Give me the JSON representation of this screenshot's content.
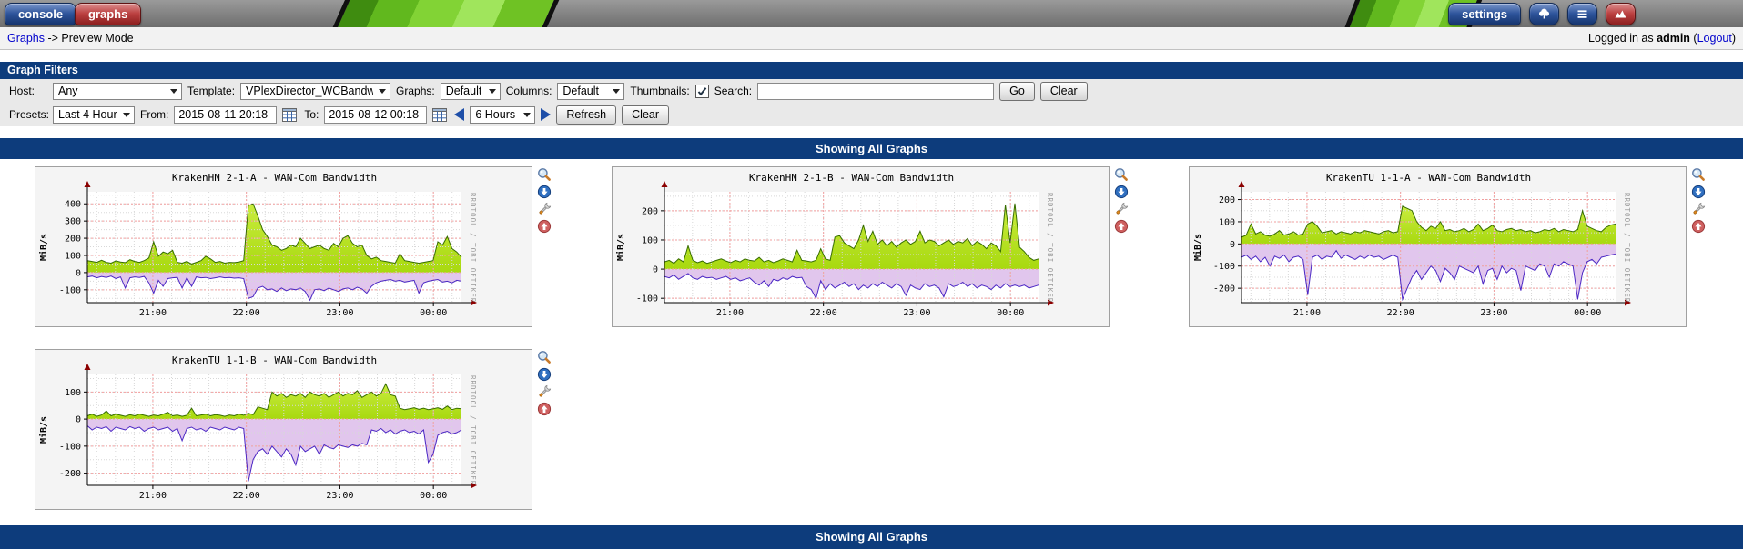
{
  "header": {
    "tabs": [
      {
        "label": "console"
      },
      {
        "label": "graphs"
      }
    ],
    "settings_label": "settings",
    "breadcrumb": {
      "link": "Graphs",
      "rest": "-> Preview Mode"
    },
    "login": {
      "prefix": "Logged in as",
      "user": "admin",
      "paren_open": "(",
      "logout": "Logout",
      "paren_close": ")"
    }
  },
  "filters": {
    "title": "Graph Filters",
    "host_label": "Host:",
    "host_value": "Any",
    "template_label": "Template:",
    "template_value": "VPlexDirector_WCBandwidth",
    "graphs_label": "Graphs:",
    "graphs_value": "Default",
    "columns_label": "Columns:",
    "columns_value": "Default",
    "thumbnails_label": "Thumbnails:",
    "thumbnails_checked": true,
    "search_label": "Search:",
    "search_value": "",
    "go_label": "Go",
    "clear_label": "Clear",
    "presets_label": "Presets:",
    "presets_value": "Last 4 Hours",
    "from_label": "From:",
    "from_value": "2015-08-11 20:18",
    "to_label": "To:",
    "to_value": "2015-08-12 00:18",
    "timespan_value": "6 Hours",
    "refresh_label": "Refresh",
    "clear2_label": "Clear"
  },
  "banner_top": "Showing All Graphs",
  "banner_bottom": "Showing All Graphs",
  "graph_actions": [
    {
      "icon": "zoom-icon"
    },
    {
      "icon": "export-down-icon"
    },
    {
      "icon": "wrench-icon"
    },
    {
      "icon": "page-top-icon"
    }
  ],
  "colors": {
    "navy": "#0d3c7c",
    "green_fill": "#a8d90f",
    "green_line": "#376d00",
    "purple_fill": "#dfc3ec",
    "purple_line": "#4b27c4",
    "grid_major": "#f29f9f",
    "grid_minor": "#d8d8d8",
    "axis_arrow": "#8b0000"
  },
  "chart_data": [
    {
      "type": "area",
      "title": "KrakenHN 2-1-A - WAN-Com Bandwidth",
      "ylabel": "MiB/s",
      "watermark": "RRDTOOL / TOBI OETIKER",
      "x_start": "20:18",
      "x_end": "00:18",
      "xticks": [
        {
          "label": "21:00",
          "f": 0.175
        },
        {
          "label": "22:00",
          "f": 0.425
        },
        {
          "label": "23:00",
          "f": 0.675
        },
        {
          "label": "00:00",
          "f": 0.925
        }
      ],
      "yticks": [
        400,
        300,
        200,
        100,
        0,
        -100
      ],
      "ylim": [
        -175,
        470
      ],
      "series": [
        {
          "name": "series_green",
          "values": [
            70,
            65,
            60,
            72,
            60,
            55,
            68,
            62,
            58,
            75,
            65,
            60,
            70,
            85,
            180,
            95,
            120,
            110,
            130,
            60,
            55,
            65,
            50,
            60,
            70,
            95,
            80,
            60,
            65,
            55,
            60,
            58,
            62,
            70,
            390,
            400,
            330,
            250,
            210,
            160,
            150,
            130,
            140,
            160,
            150,
            200,
            170,
            140,
            150,
            160,
            140,
            130,
            170,
            150,
            200,
            215,
            170,
            150,
            160,
            100,
            80,
            90,
            70,
            65,
            60,
            55,
            110,
            70,
            65,
            60,
            55,
            60,
            65,
            70,
            180,
            160,
            210,
            140,
            120,
            90
          ]
        },
        {
          "name": "series_purple",
          "values": [
            -25,
            -20,
            -30,
            -22,
            -28,
            -20,
            -35,
            -25,
            -90,
            -30,
            -25,
            -28,
            -22,
            -60,
            -120,
            -45,
            -80,
            -35,
            -30,
            -28,
            -90,
            -30,
            -80,
            -25,
            -30,
            -28,
            -35,
            -30,
            -25,
            -30,
            -28,
            -32,
            -30,
            -35,
            -150,
            -140,
            -90,
            -80,
            -100,
            -95,
            -110,
            -90,
            -105,
            -95,
            -100,
            -90,
            -110,
            -160,
            -100,
            -95,
            -105,
            -90,
            -100,
            -110,
            -95,
            -90,
            -100,
            -85,
            -95,
            -120,
            -80,
            -60,
            -50,
            -45,
            -40,
            -50,
            -45,
            -55,
            -50,
            -45,
            -120,
            -60,
            -50,
            -45,
            -40,
            -55,
            -50,
            -60,
            -45,
            -50
          ]
        }
      ]
    },
    {
      "type": "area",
      "title": "KrakenHN 2-1-B - WAN-Com Bandwidth",
      "ylabel": "MiB/s",
      "watermark": "RRDTOOL / TOBI OETIKER",
      "x_start": "20:18",
      "x_end": "00:18",
      "xticks": [
        {
          "label": "21:00",
          "f": 0.175
        },
        {
          "label": "22:00",
          "f": 0.425
        },
        {
          "label": "23:00",
          "f": 0.675
        },
        {
          "label": "00:00",
          "f": 0.925
        }
      ],
      "yticks": [
        200,
        100,
        0,
        -100
      ],
      "ylim": [
        -115,
        265
      ],
      "series": [
        {
          "name": "series_green",
          "values": [
            25,
            30,
            20,
            35,
            25,
            80,
            30,
            22,
            28,
            20,
            25,
            30,
            35,
            28,
            22,
            30,
            25,
            35,
            30,
            28,
            40,
            25,
            30,
            22,
            28,
            35,
            30,
            25,
            65,
            30,
            28,
            25,
            30,
            70,
            35,
            30,
            110,
            115,
            90,
            80,
            70,
            100,
            150,
            95,
            130,
            85,
            100,
            80,
            95,
            75,
            90,
            100,
            85,
            95,
            130,
            90,
            100,
            95,
            80,
            90,
            100,
            85,
            95,
            90,
            105,
            80,
            95,
            85,
            70,
            90,
            80,
            60,
            220,
            90,
            225,
            75,
            60,
            40,
            30,
            35
          ]
        },
        {
          "name": "series_purple",
          "values": [
            -25,
            -30,
            -20,
            -35,
            -25,
            -15,
            -30,
            -35,
            -25,
            -30,
            -28,
            -35,
            -30,
            -25,
            -35,
            -30,
            -40,
            -35,
            -30,
            -45,
            -55,
            -40,
            -60,
            -35,
            -40,
            -30,
            -35,
            -25,
            -30,
            -28,
            -60,
            -70,
            -100,
            -40,
            -70,
            -50,
            -65,
            -55,
            -45,
            -60,
            -50,
            -70,
            -55,
            -65,
            -50,
            -60,
            -45,
            -55,
            -65,
            -50,
            -60,
            -90,
            -55,
            -65,
            -70,
            -50,
            -60,
            -55,
            -65,
            -95,
            -50,
            -60,
            -55,
            -45,
            -60,
            -50,
            -65,
            -55,
            -60,
            -70,
            -55,
            -65,
            -50,
            -60,
            -55,
            -60,
            -55,
            -65,
            -60,
            -55
          ]
        }
      ]
    },
    {
      "type": "area",
      "title": "KrakenTU 1-1-A - WAN-Com Bandwidth",
      "ylabel": "MiB/s",
      "watermark": "RRDTOOL / TOBI OETIKER",
      "x_start": "20:18",
      "x_end": "00:18",
      "xticks": [
        {
          "label": "21:00",
          "f": 0.175
        },
        {
          "label": "22:00",
          "f": 0.425
        },
        {
          "label": "23:00",
          "f": 0.675
        },
        {
          "label": "00:00",
          "f": 0.925
        }
      ],
      "yticks": [
        200,
        100,
        0,
        -100,
        -200
      ],
      "ylim": [
        -265,
        235
      ],
      "series": [
        {
          "name": "series_green",
          "values": [
            30,
            40,
            90,
            45,
            55,
            40,
            35,
            45,
            60,
            40,
            45,
            55,
            40,
            45,
            90,
            100,
            80,
            50,
            55,
            60,
            45,
            55,
            50,
            45,
            55,
            50,
            60,
            55,
            50,
            45,
            55,
            60,
            50,
            55,
            170,
            160,
            150,
            100,
            75,
            60,
            80,
            70,
            100,
            60,
            65,
            55,
            60,
            70,
            55,
            65,
            90,
            60,
            70,
            85,
            60,
            55,
            65,
            70,
            60,
            65,
            55,
            60,
            50,
            55,
            65,
            60,
            70,
            55,
            65,
            60,
            55,
            65,
            150,
            80,
            70,
            60,
            55,
            75,
            85,
            90
          ]
        },
        {
          "name": "series_purple",
          "values": [
            -60,
            -50,
            -70,
            -55,
            -80,
            -60,
            -100,
            -55,
            -65,
            -50,
            -80,
            -60,
            -55,
            -70,
            -230,
            -60,
            -50,
            -70,
            -55,
            -60,
            -30,
            -65,
            -50,
            -60,
            -70,
            -55,
            -65,
            -50,
            -60,
            -55,
            -70,
            -60,
            -50,
            -60,
            -250,
            -200,
            -150,
            -120,
            -160,
            -130,
            -100,
            -120,
            -170,
            -110,
            -130,
            -160,
            -100,
            -110,
            -120,
            -130,
            -100,
            -180,
            -120,
            -110,
            -160,
            -100,
            -130,
            -110,
            -120,
            -210,
            -100,
            -110,
            -120,
            -90,
            -100,
            -150,
            -90,
            -100,
            -80,
            -90,
            -100,
            -250,
            -130,
            -80,
            -70,
            -90,
            -60,
            -55,
            -50,
            -45
          ]
        }
      ]
    },
    {
      "type": "area",
      "title": "KrakenTU 1-1-B - WAN-Com Bandwidth",
      "ylabel": "MiB/s",
      "watermark": "RRDTOOL / TOBI OETIKER",
      "x_start": "20:18",
      "x_end": "00:18",
      "xticks": [
        {
          "label": "21:00",
          "f": 0.175
        },
        {
          "label": "22:00",
          "f": 0.425
        },
        {
          "label": "23:00",
          "f": 0.675
        },
        {
          "label": "00:00",
          "f": 0.925
        }
      ],
      "yticks": [
        100,
        0,
        -100,
        -200
      ],
      "ylim": [
        -245,
        165
      ],
      "series": [
        {
          "name": "series_green",
          "values": [
            12,
            18,
            10,
            15,
            30,
            12,
            18,
            14,
            10,
            16,
            12,
            18,
            14,
            10,
            15,
            12,
            18,
            25,
            12,
            15,
            10,
            14,
            40,
            12,
            15,
            18,
            12,
            16,
            14,
            10,
            15,
            12,
            18,
            14,
            22,
            16,
            45,
            40,
            35,
            100,
            85,
            95,
            80,
            90,
            85,
            95,
            80,
            100,
            90,
            85,
            95,
            80,
            90,
            100,
            85,
            95,
            90,
            105,
            80,
            90,
            100,
            85,
            95,
            130,
            90,
            85,
            40,
            35,
            38,
            42,
            36,
            40,
            35,
            38,
            42,
            36,
            48,
            35,
            40,
            38
          ]
        },
        {
          "name": "series_purple",
          "values": [
            -25,
            -40,
            -30,
            -35,
            -28,
            -45,
            -30,
            -35,
            -40,
            -28,
            -35,
            -30,
            -45,
            -35,
            -30,
            -40,
            -35,
            -30,
            -45,
            -35,
            -80,
            -35,
            -30,
            -40,
            -35,
            -45,
            -30,
            -35,
            -40,
            -30,
            -35,
            -40,
            -30,
            -35,
            -230,
            -150,
            -120,
            -110,
            -130,
            -100,
            -120,
            -140,
            -110,
            -130,
            -170,
            -100,
            -120,
            -110,
            -100,
            -130,
            -95,
            -105,
            -110,
            -95,
            -100,
            -105,
            -95,
            -100,
            -90,
            -95,
            -40,
            -45,
            -35,
            -50,
            -40,
            -55,
            -45,
            -40,
            -50,
            -45,
            -55,
            -40,
            -160,
            -130,
            -60,
            -50,
            -45,
            -55,
            -50,
            -40
          ]
        }
      ]
    }
  ]
}
